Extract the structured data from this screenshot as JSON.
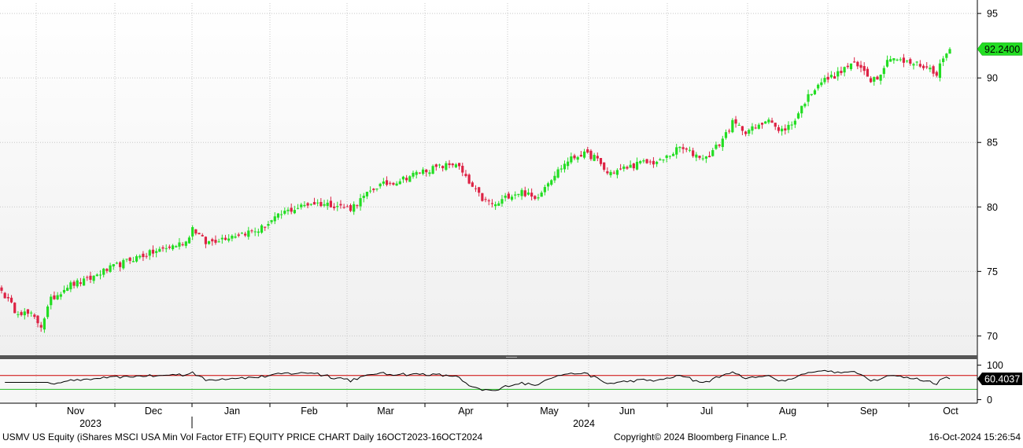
{
  "chart_data": [
    {
      "type": "candlestick",
      "panel": "price",
      "y_ticks": [
        70,
        75,
        80,
        85,
        90,
        95
      ],
      "ylim": [
        68.5,
        95.8
      ],
      "x_month_labels": [
        "Nov",
        "Dec",
        "Jan",
        "Feb",
        "Mar",
        "Apr",
        "May",
        "Jun",
        "Jul",
        "Aug",
        "Sep",
        "Oct"
      ],
      "x_year_labels": [
        "2023",
        "2024"
      ],
      "last_price_label": "92.2400",
      "grid": true,
      "up_color": "#22dd22",
      "down_color": "#dd2244",
      "close_anchors": [
        [
          0,
          73.5
        ],
        [
          4,
          72.0
        ],
        [
          9,
          71.6
        ],
        [
          12,
          70.8
        ],
        [
          15,
          72.8
        ],
        [
          20,
          73.9
        ],
        [
          26,
          74.3
        ],
        [
          30,
          74.9
        ],
        [
          40,
          76.0
        ],
        [
          50,
          76.8
        ],
        [
          56,
          77.3
        ],
        [
          58,
          78.4
        ],
        [
          62,
          77.2
        ],
        [
          70,
          77.8
        ],
        [
          78,
          78.2
        ],
        [
          86,
          79.6
        ],
        [
          94,
          80.3
        ],
        [
          100,
          80.2
        ],
        [
          106,
          79.9
        ],
        [
          114,
          81.6
        ],
        [
          120,
          82.0
        ],
        [
          128,
          82.8
        ],
        [
          135,
          83.2
        ],
        [
          138,
          83.4
        ],
        [
          142,
          81.8
        ],
        [
          146,
          80.6
        ],
        [
          150,
          80.1
        ],
        [
          154,
          80.9
        ],
        [
          158,
          81.2
        ],
        [
          162,
          80.6
        ],
        [
          166,
          82.0
        ],
        [
          172,
          83.6
        ],
        [
          176,
          84.1
        ],
        [
          180,
          83.9
        ],
        [
          184,
          82.6
        ],
        [
          188,
          82.9
        ],
        [
          194,
          83.4
        ],
        [
          200,
          83.5
        ],
        [
          206,
          84.6
        ],
        [
          210,
          84.1
        ],
        [
          214,
          83.8
        ],
        [
          218,
          84.9
        ],
        [
          222,
          86.5
        ],
        [
          226,
          85.9
        ],
        [
          230,
          86.2
        ],
        [
          233,
          87.0
        ],
        [
          236,
          85.8
        ],
        [
          240,
          86.4
        ],
        [
          244,
          88.2
        ],
        [
          248,
          89.6
        ],
        [
          254,
          90.3
        ],
        [
          258,
          91.1
        ],
        [
          262,
          90.6
        ],
        [
          264,
          89.9
        ],
        [
          266,
          90.1
        ],
        [
          270,
          91.7
        ],
        [
          274,
          91.2
        ],
        [
          278,
          91.1
        ],
        [
          282,
          90.7
        ],
        [
          284,
          90.4
        ],
        [
          286,
          91.5
        ],
        [
          288,
          92.24
        ]
      ]
    },
    {
      "type": "line",
      "panel": "oscillator",
      "y_ticks": [
        0,
        100
      ],
      "ylim": [
        -8,
        115
      ],
      "last_value_label": "60.4037",
      "reference_lines": [
        {
          "value": 70,
          "color": "#cc0000"
        },
        {
          "value": 30,
          "color": "#22bb22"
        }
      ],
      "line_color": "#000000"
    }
  ],
  "footer": {
    "left": "USMV US Equity (iShares MSCI USA Min Vol Factor ETF) EQUITY PRICE CHART  Daily 16OCT2023-16OCT2024",
    "center": "Copyright© 2024 Bloomberg Finance L.P.",
    "right": "16-Oct-2024 15:26:54"
  },
  "colors": {
    "grid": "#c8c8c8",
    "panel_divider": "#555555",
    "price_label_bg": "#22dd22"
  }
}
